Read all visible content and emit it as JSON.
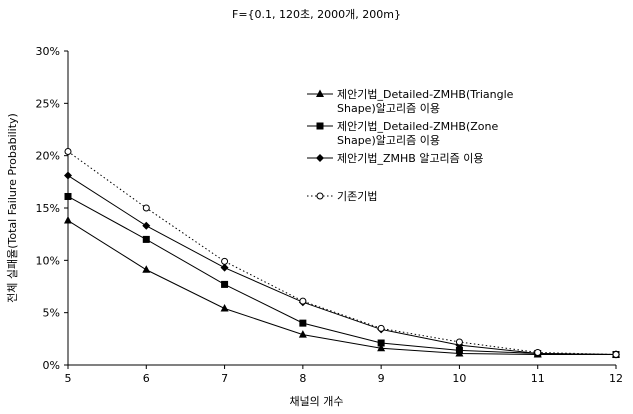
{
  "chart_data": {
    "type": "line",
    "title": "F={0.1, 120초, 2000개, 200m}",
    "xlabel": "채널의 개수",
    "ylabel": "전체 실패율(Total Failure Probability)",
    "x": [
      5,
      6,
      7,
      8,
      9,
      10,
      11,
      12
    ],
    "xlim": [
      5,
      12
    ],
    "ylim": [
      0,
      30
    ],
    "yticks": [
      "0%",
      "5%",
      "10%",
      "15%",
      "20%",
      "25%",
      "30%"
    ],
    "grid": false,
    "legend_position": "top-right",
    "series": [
      {
        "name": "제안기법_Detailed-ZMHB(Triangle Shape)알고리즘 이용",
        "marker": "triangle",
        "line": "solid",
        "values": [
          13.8,
          9.1,
          5.4,
          2.9,
          1.6,
          1.1,
          1.0,
          1.0
        ]
      },
      {
        "name": "제안기법_Detailed-ZMHB(Zone Shape)알고리즘 이용",
        "marker": "square",
        "line": "solid",
        "values": [
          16.1,
          12.0,
          7.7,
          4.0,
          2.1,
          1.4,
          1.1,
          1.0
        ]
      },
      {
        "name": "제안기법_ZMHB 알고리즘 이용",
        "marker": "diamond",
        "line": "solid",
        "values": [
          18.1,
          13.3,
          9.3,
          6.0,
          3.4,
          1.9,
          1.1,
          1.0
        ]
      },
      {
        "name": "기존기법",
        "marker": "circle",
        "line": "dotted",
        "values": [
          20.4,
          15.0,
          9.9,
          6.1,
          3.5,
          2.2,
          1.2,
          1.0
        ]
      }
    ]
  }
}
